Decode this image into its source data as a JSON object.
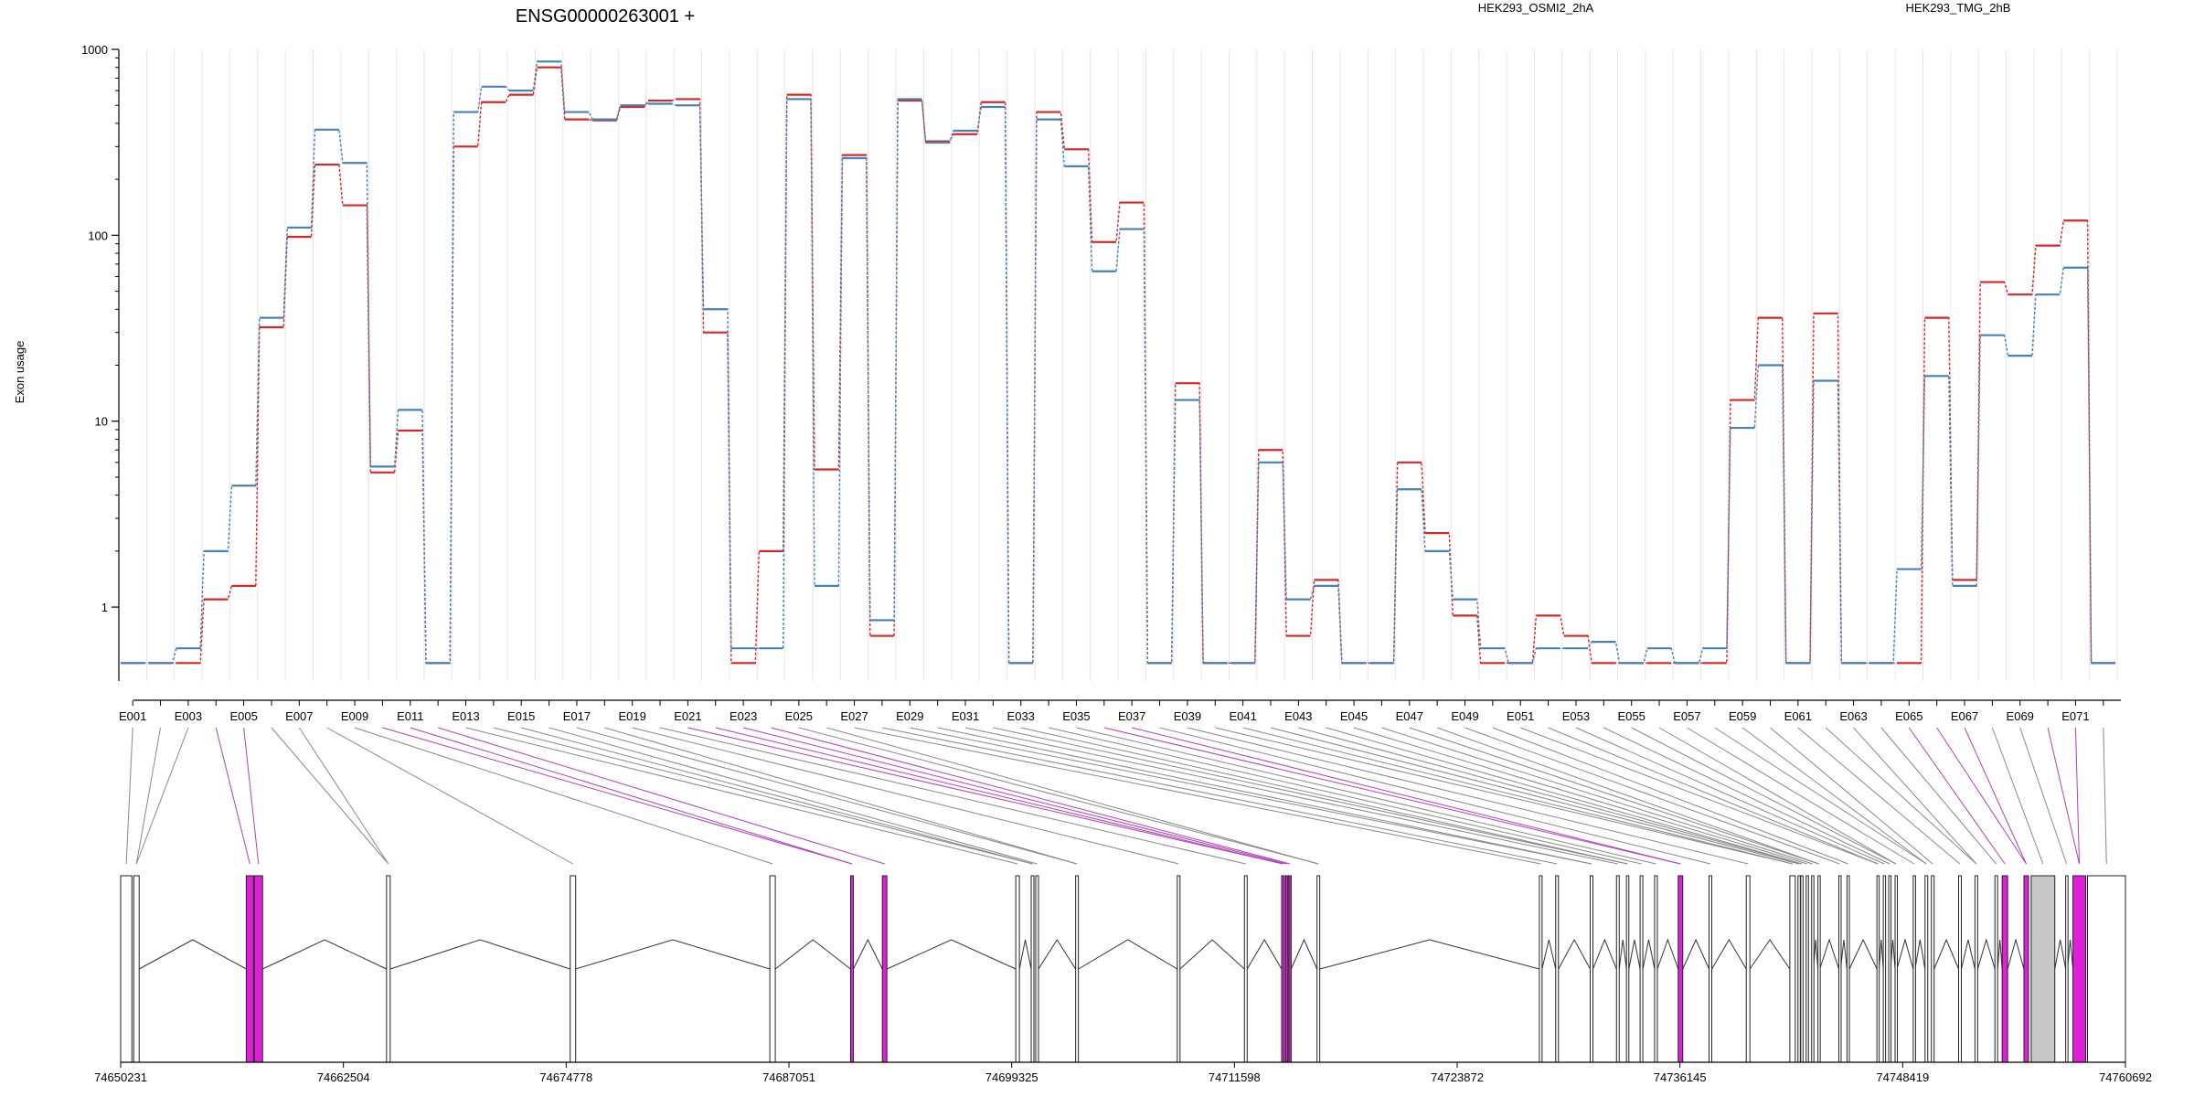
{
  "chart_data": {
    "type": "line",
    "title": "ENSG00000263001 +",
    "ylabel": "Exon usage",
    "xlabel": "",
    "yscale": "log",
    "ylim": [
      0.4,
      1000
    ],
    "y_ticks": [
      "1",
      "10",
      "100",
      "1000"
    ],
    "grid": "vertical exon separators",
    "legend_position": "top-right",
    "exons": [
      "E001",
      "E002",
      "E003",
      "E004",
      "E005",
      "E006",
      "E007",
      "E008",
      "E009",
      "E010",
      "E011",
      "E012",
      "E013",
      "E014",
      "E015",
      "E016",
      "E017",
      "E018",
      "E019",
      "E020",
      "E021",
      "E022",
      "E023",
      "E024",
      "E025",
      "E026",
      "E027",
      "E028",
      "E029",
      "E030",
      "E031",
      "E032",
      "E033",
      "E034",
      "E035",
      "E036",
      "E037",
      "E038",
      "E039",
      "E040",
      "E041",
      "E042",
      "E043",
      "E044",
      "E045",
      "E046",
      "E047",
      "E048",
      "E049",
      "E050",
      "E051",
      "E052",
      "E053",
      "E054",
      "E055",
      "E056",
      "E057",
      "E058",
      "E059",
      "E060",
      "E061",
      "E062",
      "E063",
      "E064",
      "E065",
      "E066",
      "E067",
      "E068",
      "E069",
      "E070",
      "E071",
      "E072"
    ],
    "exon_tick_labels": [
      "E001",
      "E003",
      "E005",
      "E007",
      "E009",
      "E011",
      "E013",
      "E015",
      "E017",
      "E019",
      "E021",
      "E023",
      "E025",
      "E027",
      "E029",
      "E031",
      "E033",
      "E035",
      "E037",
      "E039",
      "E041",
      "E043",
      "E045",
      "E047",
      "E049",
      "E051",
      "E053",
      "E055",
      "E057",
      "E059",
      "E061",
      "E063",
      "E065",
      "E067",
      "E069",
      "E071"
    ],
    "series": [
      {
        "name": "HEK293_OSMI2_2hA",
        "color": "#d62728",
        "values": [
          0.5,
          0.5,
          0.5,
          1.1,
          1.3,
          32,
          98,
          240,
          145,
          5.3,
          8.9,
          0.5,
          300,
          520,
          570,
          800,
          420,
          415,
          490,
          530,
          540,
          30,
          0.5,
          2,
          570,
          5.5,
          270,
          0.7,
          530,
          320,
          350,
          520,
          0.5,
          460,
          290,
          92,
          150,
          0.5,
          16,
          0.5,
          0.5,
          7,
          0.7,
          1.4,
          0.5,
          0.5,
          6,
          2.5,
          0.9,
          0.5,
          0.5,
          0.9,
          0.7,
          0.5,
          0.5,
          0.5,
          0.5,
          0.5,
          13,
          36,
          0.5,
          38,
          0.5,
          0.5,
          0.5,
          36,
          1.4,
          56,
          48,
          88,
          120,
          0.5
        ]
      },
      {
        "name": "HEK293_TMG_2hB",
        "color": "#4682b4",
        "values": [
          0.5,
          0.5,
          0.6,
          2,
          4.5,
          36,
          110,
          370,
          245,
          5.7,
          11.5,
          0.5,
          460,
          630,
          600,
          860,
          460,
          420,
          500,
          510,
          500,
          40,
          0.6,
          0.6,
          540,
          1.3,
          260,
          0.85,
          540,
          315,
          365,
          490,
          0.5,
          420,
          235,
          64,
          108,
          0.5,
          13,
          0.5,
          0.5,
          6,
          1.1,
          1.3,
          0.5,
          0.5,
          4.3,
          2,
          1.1,
          0.6,
          0.5,
          0.6,
          0.6,
          0.65,
          0.5,
          0.6,
          0.5,
          0.6,
          9.2,
          20,
          0.5,
          16.5,
          0.5,
          0.5,
          1.6,
          17.5,
          1.3,
          29,
          22.5,
          48,
          67,
          0.5
        ]
      }
    ],
    "genome_axis": {
      "range": [
        74650231,
        74760692
      ],
      "tick_labels": [
        "74650231",
        "74662504",
        "74674778",
        "74687051",
        "74699325",
        "74711598",
        "74723872",
        "74736145",
        "74748419",
        "74760692"
      ]
    },
    "transcript_model": {
      "exons_genomic": [
        [
          74650231,
          74650850
        ],
        [
          74650950,
          74651250
        ],
        [
          74657150,
          74657550
        ],
        [
          74657600,
          74658050
        ],
        [
          74664880,
          74665080
        ],
        [
          74675000,
          74675300
        ],
        [
          74686000,
          74686300
        ],
        [
          74690450,
          74690600
        ],
        [
          74692200,
          74692450
        ],
        [
          74699550,
          74699750
        ],
        [
          74700400,
          74700550
        ],
        [
          74700650,
          74700800
        ],
        [
          74702850,
          74703000
        ],
        [
          74708450,
          74708600
        ],
        [
          74712150,
          74712300
        ],
        [
          74714200,
          74714350
        ],
        [
          74714420,
          74714520
        ],
        [
          74714600,
          74714720
        ],
        [
          74716150,
          74716300
        ],
        [
          74728400,
          74728550
        ],
        [
          74729300,
          74729450
        ],
        [
          74731200,
          74731350
        ],
        [
          74732650,
          74732800
        ],
        [
          74733200,
          74733330
        ],
        [
          74733950,
          74734100
        ],
        [
          74734750,
          74734900
        ],
        [
          74736050,
          74736300
        ],
        [
          74737750,
          74737900
        ],
        [
          74739800,
          74740000
        ],
        [
          74742200,
          74742500
        ],
        [
          74742650,
          74742750
        ],
        [
          74742800,
          74742900
        ],
        [
          74743100,
          74743200
        ],
        [
          74743400,
          74743500
        ],
        [
          74743750,
          74743850
        ],
        [
          74744900,
          74745000
        ],
        [
          74745350,
          74745480
        ],
        [
          74747000,
          74747120
        ],
        [
          74747350,
          74747470
        ],
        [
          74747650,
          74747750
        ],
        [
          74748000,
          74748100
        ],
        [
          74749000,
          74749100
        ],
        [
          74749650,
          74749800
        ],
        [
          74750000,
          74750150
        ],
        [
          74751500,
          74751650
        ],
        [
          74752400,
          74752550
        ],
        [
          74753500,
          74753650
        ],
        [
          74753900,
          74754200
        ],
        [
          74755100,
          74755350
        ],
        [
          74755500,
          74756800
        ],
        [
          74757400,
          74757500
        ],
        [
          74757800,
          74758500
        ],
        [
          74758600,
          74760692
        ]
      ],
      "highlighted_exon_indices": [
        2,
        3,
        7,
        8,
        15,
        16,
        17,
        26,
        47,
        48,
        51
      ],
      "shaded_exon_indices": [
        49
      ]
    }
  }
}
